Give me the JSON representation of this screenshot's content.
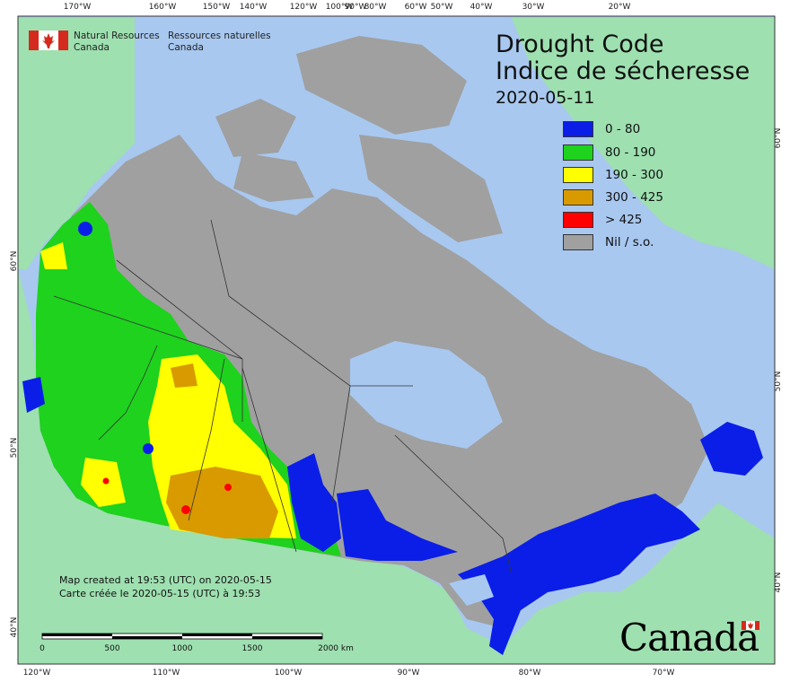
{
  "agency": {
    "name_en_line1": "Natural Resources",
    "name_en_line2": "Canada",
    "name_fr_line1": "Ressources naturelles",
    "name_fr_line2": "Canada"
  },
  "title": {
    "en": "Drought Code",
    "fr": "Indice de sécheresse",
    "date": "2020-05-11"
  },
  "legend": [
    {
      "label": "0 - 80",
      "color": "#0a1ee8"
    },
    {
      "label": "80 - 190",
      "color": "#1ed21e"
    },
    {
      "label": "190 - 300",
      "color": "#ffff00"
    },
    {
      "label": "300 - 425",
      "color": "#d99a00"
    },
    {
      "label": "> 425",
      "color": "#ff0000"
    },
    {
      "label": "Nil / s.o.",
      "color": "#a0a0a0"
    }
  ],
  "credits": {
    "line_en": "Map created at 19:53 (UTC) on 2020-05-15",
    "line_fr": "Carte créée le 2020-05-15 (UTC) à 19:53"
  },
  "scale_bar": {
    "labels": [
      "0",
      "500",
      "1000",
      "1500",
      "2000  km"
    ]
  },
  "graticule": {
    "top": [
      "170°W",
      "160°W",
      "150°W",
      "140°W",
      "120°W",
      "100°W",
      "90°W",
      "80°W",
      "60°W",
      "50°W",
      "40°W",
      "30°W",
      "20°W"
    ],
    "bottom": [
      "120°W",
      "110°W",
      "100°W",
      "90°W",
      "80°W",
      "70°W"
    ],
    "left": [
      "60°N",
      "50°N",
      "40°N"
    ],
    "right": [
      "60°N",
      "50°N",
      "40°N"
    ]
  },
  "wordmark": "Canada",
  "colors": {
    "ocean": "#a8c8f0",
    "foreign_land": "#9ee0b0",
    "no_data": "#a0a0a0",
    "border": "#333333"
  }
}
